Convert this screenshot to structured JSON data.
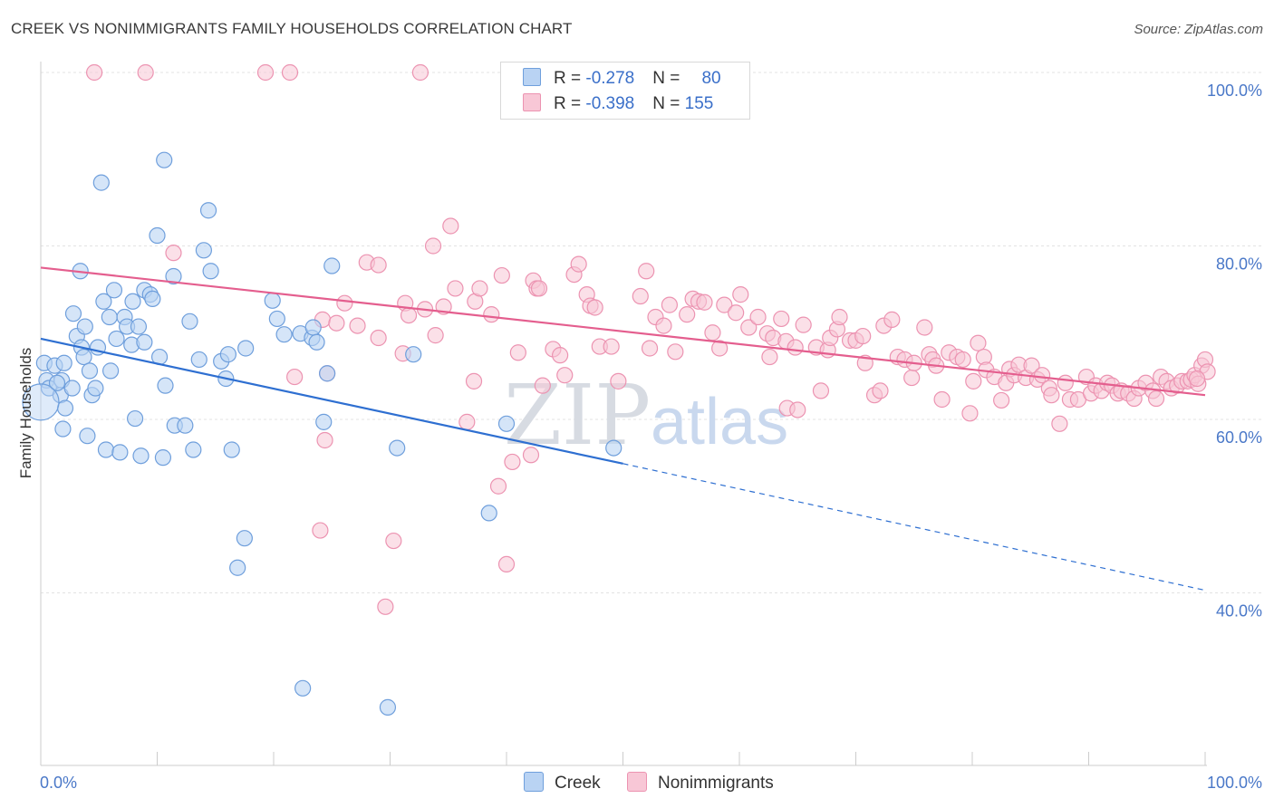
{
  "title": "CREEK VS NONIMMIGRANTS FAMILY HOUSEHOLDS CORRELATION CHART",
  "source": "Source: ZipAtlas.com",
  "watermark": {
    "zip": "ZIP",
    "atlas": "atlas"
  },
  "legend": {
    "creek": {
      "r_label": "R = ",
      "r_value": "-0.278",
      "n_label": "N = ",
      "n_value": "80"
    },
    "nonimmigrants": {
      "r_label": "R = ",
      "r_value": "-0.398",
      "n_label": "N = ",
      "n_value": "155"
    }
  },
  "bottom_legend": {
    "creek": "Creek",
    "nonimmigrants": "Nonimmigrants"
  },
  "colors": {
    "creek_fill": "#b9d3f3",
    "creek_stroke": "#6f9fdc",
    "creek_line": "#2e6fd1",
    "non_fill": "#f8c7d6",
    "non_stroke": "#ec93b1",
    "non_line": "#e45e8e",
    "tick_text": "#4a78c8"
  },
  "chart_data": {
    "type": "scatter",
    "title": "CREEK VS NONIMMIGRANTS FAMILY HOUSEHOLDS CORRELATION CHART",
    "xlabel": "",
    "ylabel": "Family Households",
    "xlim": [
      0,
      100
    ],
    "ylim": [
      20,
      102
    ],
    "x_tick_labels": [
      "0.0%",
      "100.0%"
    ],
    "y_ticks": [
      40,
      60,
      80,
      100
    ],
    "y_tick_labels": [
      "40.0%",
      "60.0%",
      "80.0%",
      "100.0%"
    ],
    "grid": true,
    "series": [
      {
        "name": "Creek",
        "r": -0.278,
        "n": 80,
        "trend": {
          "x0": 0,
          "y0": 69.3,
          "x1": 50,
          "y1": 54.9,
          "dashed_to_x": 100,
          "dashed_to_y": 40.3
        },
        "points": [
          [
            0.3,
            66.5
          ],
          [
            0.5,
            64.5
          ],
          [
            0.7,
            63.6
          ],
          [
            1.2,
            66.2
          ],
          [
            1.8,
            64.5
          ],
          [
            1.7,
            62.8
          ],
          [
            1.9,
            58.9
          ],
          [
            1.4,
            64.2
          ],
          [
            2.0,
            66.5
          ],
          [
            2.1,
            61.3
          ],
          [
            2.7,
            63.6
          ],
          [
            2.8,
            72.2
          ],
          [
            3.1,
            69.6
          ],
          [
            3.4,
            77.1
          ],
          [
            3.5,
            68.3
          ],
          [
            3.7,
            67.2
          ],
          [
            3.8,
            70.7
          ],
          [
            4.0,
            58.1
          ],
          [
            4.2,
            65.6
          ],
          [
            4.4,
            62.8
          ],
          [
            4.7,
            63.6
          ],
          [
            4.9,
            68.3
          ],
          [
            5.2,
            87.3
          ],
          [
            5.4,
            73.6
          ],
          [
            5.6,
            56.5
          ],
          [
            5.9,
            71.8
          ],
          [
            6.0,
            65.6
          ],
          [
            6.3,
            74.9
          ],
          [
            6.5,
            69.3
          ],
          [
            6.8,
            56.2
          ],
          [
            7.2,
            71.8
          ],
          [
            7.4,
            70.7
          ],
          [
            7.8,
            68.6
          ],
          [
            7.9,
            73.6
          ],
          [
            8.1,
            60.1
          ],
          [
            8.4,
            70.7
          ],
          [
            8.6,
            55.8
          ],
          [
            8.9,
            74.9
          ],
          [
            8.9,
            68.9
          ],
          [
            9.4,
            74.4
          ],
          [
            9.6,
            73.9
          ],
          [
            10.0,
            81.2
          ],
          [
            10.2,
            67.2
          ],
          [
            10.5,
            55.6
          ],
          [
            10.6,
            89.9
          ],
          [
            10.7,
            63.9
          ],
          [
            11.4,
            76.5
          ],
          [
            11.5,
            59.3
          ],
          [
            12.4,
            59.3
          ],
          [
            12.8,
            71.3
          ],
          [
            13.1,
            56.5
          ],
          [
            13.6,
            66.9
          ],
          [
            14.0,
            79.5
          ],
          [
            14.4,
            84.1
          ],
          [
            14.6,
            77.1
          ],
          [
            15.5,
            66.7
          ],
          [
            15.9,
            64.7
          ],
          [
            16.1,
            67.5
          ],
          [
            16.4,
            56.5
          ],
          [
            17.5,
            46.3
          ],
          [
            17.6,
            68.2
          ],
          [
            16.9,
            42.9
          ],
          [
            19.9,
            73.7
          ],
          [
            20.3,
            71.6
          ],
          [
            20.9,
            69.8
          ],
          [
            22.3,
            69.9
          ],
          [
            22.5,
            29.0
          ],
          [
            23.3,
            69.4
          ],
          [
            23.4,
            70.6
          ],
          [
            23.7,
            68.9
          ],
          [
            24.6,
            65.3
          ],
          [
            24.3,
            59.7
          ],
          [
            25.0,
            77.7
          ],
          [
            29.8,
            26.8
          ],
          [
            30.6,
            56.7
          ],
          [
            32.0,
            67.5
          ],
          [
            38.5,
            49.2
          ],
          [
            40.0,
            59.5
          ],
          [
            49.2,
            56.7
          ],
          [
            0.0,
            62.0
          ]
        ]
      },
      {
        "name": "Nonimmigrants",
        "r": -0.398,
        "n": 155,
        "trend": {
          "x0": 0,
          "y0": 77.5,
          "x1": 100,
          "y1": 62.8
        },
        "points": [
          [
            4.6,
            100
          ],
          [
            9.0,
            100
          ],
          [
            19.3,
            100
          ],
          [
            21.4,
            100
          ],
          [
            32.6,
            100
          ],
          [
            11.4,
            79.2
          ],
          [
            21.8,
            64.9
          ],
          [
            24.2,
            71.5
          ],
          [
            24.6,
            65.3
          ],
          [
            25.4,
            71.1
          ],
          [
            24.0,
            47.2
          ],
          [
            24.4,
            57.6
          ],
          [
            26.1,
            73.4
          ],
          [
            27.2,
            70.8
          ],
          [
            28.0,
            78.1
          ],
          [
            29.0,
            77.8
          ],
          [
            29.6,
            38.4
          ],
          [
            29.0,
            69.4
          ],
          [
            30.3,
            46.0
          ],
          [
            31.1,
            67.6
          ],
          [
            31.3,
            73.4
          ],
          [
            31.6,
            72.0
          ],
          [
            33.0,
            72.7
          ],
          [
            33.7,
            80.0
          ],
          [
            33.9,
            69.7
          ],
          [
            34.6,
            73.0
          ],
          [
            35.2,
            82.3
          ],
          [
            35.6,
            75.1
          ],
          [
            36.6,
            59.7
          ],
          [
            37.2,
            64.4
          ],
          [
            37.3,
            73.6
          ],
          [
            37.7,
            75.1
          ],
          [
            38.7,
            72.1
          ],
          [
            39.3,
            52.3
          ],
          [
            39.6,
            76.6
          ],
          [
            40.0,
            43.3
          ],
          [
            40.5,
            55.1
          ],
          [
            41.0,
            67.7
          ],
          [
            42.1,
            55.9
          ],
          [
            42.3,
            76.0
          ],
          [
            42.6,
            75.1
          ],
          [
            42.8,
            75.1
          ],
          [
            43.1,
            63.9
          ],
          [
            44.0,
            68.1
          ],
          [
            44.6,
            67.4
          ],
          [
            45.0,
            65.1
          ],
          [
            45.8,
            76.7
          ],
          [
            46.2,
            77.9
          ],
          [
            46.9,
            74.4
          ],
          [
            47.2,
            73.1
          ],
          [
            47.6,
            72.9
          ],
          [
            48.0,
            68.4
          ],
          [
            49.0,
            68.4
          ],
          [
            49.6,
            64.4
          ],
          [
            51.5,
            74.2
          ],
          [
            52.0,
            77.1
          ],
          [
            52.3,
            68.2
          ],
          [
            52.8,
            71.8
          ],
          [
            53.5,
            70.8
          ],
          [
            54.0,
            73.2
          ],
          [
            54.5,
            67.8
          ],
          [
            55.5,
            72.1
          ],
          [
            56.0,
            73.9
          ],
          [
            56.5,
            73.6
          ],
          [
            57.0,
            73.5
          ],
          [
            57.7,
            70.0
          ],
          [
            58.3,
            68.2
          ],
          [
            58.7,
            73.2
          ],
          [
            59.7,
            72.3
          ],
          [
            60.1,
            74.4
          ],
          [
            60.8,
            70.6
          ],
          [
            61.6,
            71.8
          ],
          [
            62.4,
            69.9
          ],
          [
            62.6,
            67.2
          ],
          [
            62.9,
            69.4
          ],
          [
            63.6,
            71.6
          ],
          [
            64.0,
            69.0
          ],
          [
            64.8,
            68.3
          ],
          [
            64.1,
            61.3
          ],
          [
            65.0,
            61.1
          ],
          [
            65.5,
            70.9
          ],
          [
            66.6,
            68.3
          ],
          [
            67.0,
            63.3
          ],
          [
            67.6,
            68.0
          ],
          [
            67.8,
            69.4
          ],
          [
            68.4,
            70.4
          ],
          [
            68.6,
            71.8
          ],
          [
            69.5,
            69.1
          ],
          [
            70.0,
            69.1
          ],
          [
            70.6,
            69.6
          ],
          [
            70.8,
            66.5
          ],
          [
            71.6,
            62.8
          ],
          [
            72.1,
            63.3
          ],
          [
            72.4,
            70.8
          ],
          [
            73.1,
            71.5
          ],
          [
            73.6,
            67.2
          ],
          [
            74.2,
            66.9
          ],
          [
            74.8,
            64.8
          ],
          [
            75.0,
            66.5
          ],
          [
            75.9,
            70.6
          ],
          [
            76.3,
            67.5
          ],
          [
            76.6,
            66.9
          ],
          [
            76.9,
            66.2
          ],
          [
            77.4,
            62.3
          ],
          [
            78.0,
            67.7
          ],
          [
            78.7,
            67.2
          ],
          [
            79.2,
            66.9
          ],
          [
            79.8,
            60.7
          ],
          [
            80.1,
            64.4
          ],
          [
            80.5,
            68.8
          ],
          [
            81.0,
            67.2
          ],
          [
            81.2,
            65.7
          ],
          [
            81.9,
            64.9
          ],
          [
            82.5,
            62.2
          ],
          [
            82.9,
            64.2
          ],
          [
            83.2,
            65.8
          ],
          [
            83.6,
            65.1
          ],
          [
            84.0,
            66.3
          ],
          [
            84.6,
            64.8
          ],
          [
            85.1,
            66.2
          ],
          [
            85.6,
            64.6
          ],
          [
            86.0,
            65.1
          ],
          [
            86.6,
            63.6
          ],
          [
            86.8,
            62.8
          ],
          [
            87.5,
            59.5
          ],
          [
            88.0,
            64.2
          ],
          [
            88.4,
            62.3
          ],
          [
            89.1,
            62.3
          ],
          [
            89.8,
            64.9
          ],
          [
            90.2,
            63.0
          ],
          [
            90.6,
            63.9
          ],
          [
            91.1,
            63.3
          ],
          [
            91.6,
            64.2
          ],
          [
            92.0,
            63.9
          ],
          [
            92.5,
            63.0
          ],
          [
            92.8,
            63.3
          ],
          [
            93.4,
            63.0
          ],
          [
            93.9,
            62.4
          ],
          [
            94.3,
            63.6
          ],
          [
            94.9,
            64.2
          ],
          [
            95.5,
            63.3
          ],
          [
            95.8,
            62.4
          ],
          [
            96.2,
            64.9
          ],
          [
            96.7,
            64.4
          ],
          [
            97.1,
            63.6
          ],
          [
            97.6,
            63.9
          ],
          [
            98.0,
            64.4
          ],
          [
            98.5,
            64.4
          ],
          [
            98.8,
            64.6
          ],
          [
            99.1,
            65.1
          ],
          [
            99.4,
            64.1
          ],
          [
            99.7,
            66.2
          ],
          [
            100.0,
            66.9
          ],
          [
            100.2,
            65.5
          ],
          [
            99.3,
            64.7
          ]
        ]
      }
    ]
  }
}
